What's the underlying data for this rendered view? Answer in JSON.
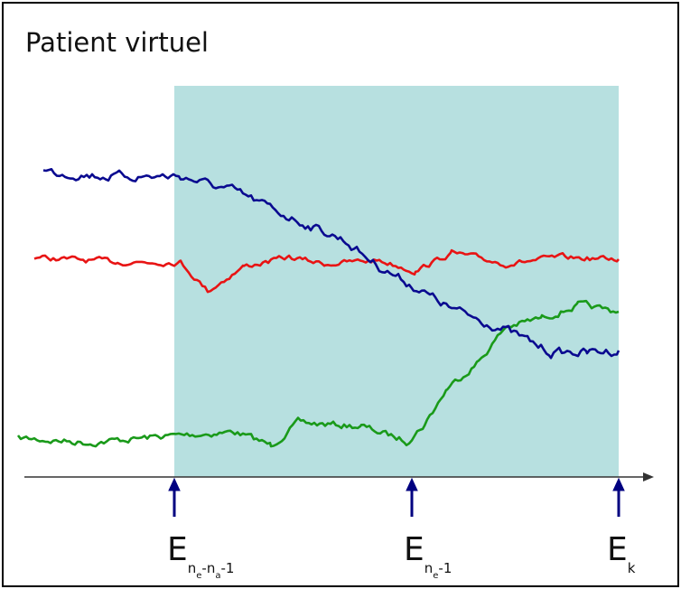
{
  "title": "Patient virtuel",
  "markers": [
    {
      "label": [
        {
          "base": "E"
        },
        {
          "sub": "n"
        },
        {
          "subsub": "e"
        },
        {
          "sub": "-n"
        },
        {
          "subsub": "a"
        },
        {
          "sub": "-1"
        }
      ]
    },
    {
      "label": [
        {
          "base": "E"
        },
        {
          "sub": "n"
        },
        {
          "subsub": "e"
        },
        {
          "sub": "-1"
        }
      ]
    },
    {
      "label": [
        {
          "base": "E"
        },
        {
          "sub": "k"
        }
      ]
    }
  ]
}
